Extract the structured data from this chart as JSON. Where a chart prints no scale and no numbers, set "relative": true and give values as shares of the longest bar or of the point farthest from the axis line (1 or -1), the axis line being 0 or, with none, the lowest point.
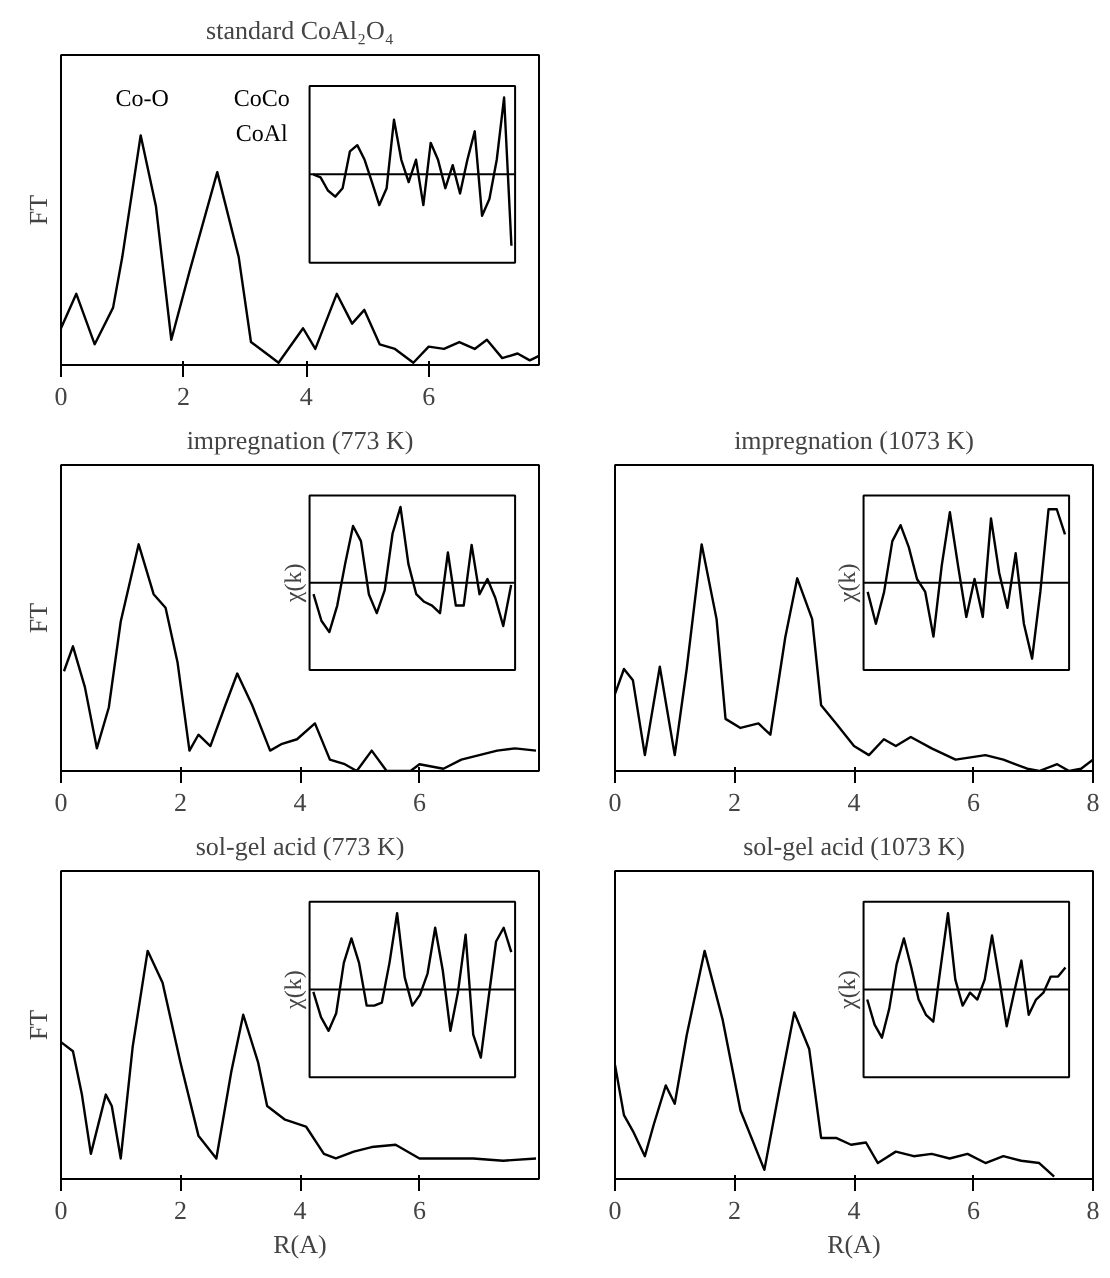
{
  "chart_data": [
    {
      "type": "line",
      "title": "standard CoAl₂O₄",
      "ylabel": "FT",
      "relative": true,
      "tick_labels": "x",
      "color": "#000000",
      "xlim": [
        0,
        7.8
      ],
      "xticks": [
        0,
        2,
        4,
        6
      ],
      "x": [
        0.0,
        0.25,
        0.55,
        0.85,
        1.0,
        1.3,
        1.55,
        1.8,
        2.1,
        2.55,
        2.9,
        3.1,
        3.4,
        3.55,
        3.95,
        4.15,
        4.5,
        4.75,
        4.95,
        5.2,
        5.45,
        5.75,
        6.0,
        6.25,
        6.5,
        6.75,
        6.95,
        7.2,
        7.45,
        7.65,
        7.8
      ],
      "values": [
        0.16,
        0.31,
        0.09,
        0.25,
        0.47,
        1.0,
        0.69,
        0.11,
        0.41,
        0.84,
        0.47,
        0.1,
        0.04,
        0.01,
        0.16,
        0.07,
        0.31,
        0.18,
        0.24,
        0.09,
        0.07,
        0.01,
        0.08,
        0.07,
        0.1,
        0.07,
        0.11,
        0.03,
        0.05,
        0.02,
        0.04
      ],
      "annotations": [
        "Co-O",
        "CoCo",
        "CoAl"
      ]
    },
    {
      "type": "line",
      "relative": true,
      "color": "#000000",
      "ref_lines": [
        {
          "axis": "y",
          "value": 0
        }
      ],
      "categories": [
        null,
        null,
        null,
        null,
        null,
        null,
        null,
        null,
        null,
        null,
        null,
        null,
        null,
        null,
        null,
        null,
        null,
        null,
        null,
        null,
        null,
        null,
        null,
        null,
        null,
        null,
        null,
        null
      ],
      "values": [
        0,
        -0.04,
        -0.21,
        -0.29,
        -0.18,
        0.3,
        0.38,
        0.19,
        -0.1,
        -0.4,
        -0.18,
        0.71,
        0.19,
        -0.1,
        0.19,
        -0.4,
        0.41,
        0.19,
        -0.18,
        0.12,
        -0.25,
        0.19,
        0.56,
        -0.54,
        -0.32,
        0.19,
        1.0,
        -0.93
      ]
    },
    {
      "type": "line",
      "title": "impregnation (773 K)",
      "ylabel": "FT",
      "relative": true,
      "tick_labels": "x",
      "color": "#000000",
      "xlim": [
        0,
        8
      ],
      "xticks": [
        0,
        2,
        4,
        6
      ],
      "x": [
        0.05,
        0.2,
        0.4,
        0.6,
        0.8,
        1.0,
        1.3,
        1.55,
        1.75,
        1.95,
        2.15,
        2.3,
        2.5,
        2.75,
        2.95,
        3.2,
        3.5,
        3.7,
        3.95,
        4.25,
        4.5,
        4.75,
        4.95,
        5.2,
        5.45,
        5.85,
        6.0,
        6.4,
        6.7,
        7.0,
        7.3,
        7.6,
        7.95
      ],
      "values": [
        0.44,
        0.55,
        0.37,
        0.1,
        0.28,
        0.66,
        1.0,
        0.78,
        0.72,
        0.48,
        0.09,
        0.16,
        0.11,
        0.29,
        0.43,
        0.29,
        0.09,
        0.12,
        0.14,
        0.21,
        0.05,
        0.03,
        0,
        0.09,
        0,
        0,
        0.03,
        0.01,
        0.05,
        0.07,
        0.09,
        0.1,
        0.09
      ]
    },
    {
      "type": "line",
      "ylabel": "χ(k)",
      "relative": true,
      "color": "#000000",
      "ref_lines": [
        {
          "axis": "y",
          "value": 0
        }
      ],
      "categories": [
        null,
        null,
        null,
        null,
        null,
        null,
        null,
        null,
        null,
        null,
        null,
        null,
        null,
        null,
        null,
        null,
        null,
        null,
        null,
        null,
        null,
        null,
        null,
        null,
        null,
        null
      ],
      "values": [
        -0.15,
        -0.5,
        -0.65,
        -0.3,
        0.25,
        0.75,
        0.55,
        -0.15,
        -0.4,
        -0.1,
        0.65,
        1.0,
        0.25,
        -0.15,
        -0.25,
        -0.3,
        -0.4,
        0.4,
        -0.3,
        -0.3,
        0.5,
        -0.15,
        0.05,
        -0.2,
        -0.57,
        -0.03
      ]
    },
    {
      "type": "line",
      "title": "impregnation (1073 K)",
      "relative": true,
      "tick_labels": "x",
      "color": "#000000",
      "xlim": [
        0,
        8
      ],
      "xticks": [
        0,
        2,
        4,
        6,
        8
      ],
      "x": [
        0.0,
        0.15,
        0.3,
        0.5,
        0.75,
        1.0,
        1.2,
        1.45,
        1.7,
        1.85,
        2.1,
        2.4,
        2.6,
        2.85,
        3.05,
        3.3,
        3.45,
        3.7,
        4.0,
        4.25,
        4.5,
        4.7,
        4.95,
        5.3,
        5.7,
        6.2,
        6.5,
        6.9,
        7.1,
        7.4,
        7.6,
        7.8,
        8.0
      ],
      "values": [
        0.34,
        0.45,
        0.4,
        0.07,
        0.46,
        0.07,
        0.45,
        1.0,
        0.67,
        0.23,
        0.19,
        0.21,
        0.16,
        0.59,
        0.85,
        0.67,
        0.29,
        0.21,
        0.11,
        0.07,
        0.14,
        0.11,
        0.15,
        0.1,
        0.05,
        0.07,
        0.05,
        0.01,
        0,
        0.03,
        0,
        0.01,
        0.05
      ]
    },
    {
      "type": "line",
      "ylabel": "χ(k)",
      "relative": true,
      "color": "#000000",
      "ref_lines": [
        {
          "axis": "y",
          "value": 0
        }
      ],
      "categories": [
        null,
        null,
        null,
        null,
        null,
        null,
        null,
        null,
        null,
        null,
        null,
        null,
        null,
        null,
        null,
        null,
        null,
        null,
        null,
        null,
        null,
        null,
        null,
        null,
        null
      ],
      "values": [
        -0.12,
        -0.54,
        -0.12,
        0.55,
        0.76,
        0.47,
        0.05,
        -0.12,
        -0.71,
        0.22,
        0.93,
        0.22,
        -0.45,
        0.05,
        -0.45,
        0.85,
        0.13,
        -0.33,
        0.39,
        -0.54,
        -1.0,
        -0.12,
        0.97,
        0.97,
        0.64
      ]
    },
    {
      "type": "line",
      "title": "sol-gel acid (773 K)",
      "ylabel": "FT",
      "xlabel": "R(A)",
      "relative": true,
      "tick_labels": "x",
      "color": "#000000",
      "xlim": [
        0,
        8
      ],
      "xticks": [
        0,
        2,
        4,
        6
      ],
      "x": [
        0.0,
        0.2,
        0.35,
        0.5,
        0.75,
        0.85,
        1.0,
        1.2,
        1.45,
        1.7,
        2.0,
        2.3,
        2.6,
        2.85,
        3.05,
        3.3,
        3.45,
        3.75,
        4.1,
        4.4,
        4.6,
        4.9,
        5.2,
        5.6,
        6.0,
        6.4,
        6.9,
        7.4,
        7.95
      ],
      "values": [
        0.6,
        0.56,
        0.37,
        0.11,
        0.37,
        0.32,
        0.09,
        0.58,
        1.0,
        0.86,
        0.51,
        0.19,
        0.09,
        0.47,
        0.72,
        0.51,
        0.32,
        0.26,
        0.23,
        0.11,
        0.09,
        0.12,
        0.14,
        0.15,
        0.09,
        0.09,
        0.09,
        0.08,
        0.09
      ]
    },
    {
      "type": "line",
      "ylabel": "χ(k)",
      "relative": true,
      "color": "#000000",
      "ref_lines": [
        {
          "axis": "y",
          "value": 0
        }
      ],
      "categories": [
        null,
        null,
        null,
        null,
        null,
        null,
        null,
        null,
        null,
        null,
        null,
        null,
        null,
        null,
        null,
        null,
        null,
        null,
        null,
        null,
        null,
        null,
        null,
        null,
        null,
        null,
        null
      ],
      "values": [
        -0.03,
        -0.36,
        -0.54,
        -0.31,
        0.35,
        0.67,
        0.35,
        -0.21,
        -0.21,
        -0.17,
        0.35,
        1.0,
        0.16,
        -0.21,
        -0.07,
        0.21,
        0.81,
        0.25,
        -0.54,
        -0.03,
        0.72,
        -0.59,
        -0.89,
        -0.12,
        0.63,
        0.81,
        0.49
      ]
    },
    {
      "type": "line",
      "title": "sol-gel acid (1073 K)",
      "xlabel": "R(A)",
      "relative": true,
      "tick_labels": "x",
      "color": "#000000",
      "xlim": [
        0,
        8
      ],
      "xticks": [
        0,
        2,
        4,
        6,
        8
      ],
      "x": [
        0.0,
        0.15,
        0.3,
        0.5,
        0.65,
        0.85,
        1.0,
        1.2,
        1.5,
        1.8,
        2.1,
        2.5,
        2.75,
        3.0,
        3.25,
        3.45,
        3.7,
        3.95,
        4.2,
        4.4,
        4.7,
        5.0,
        5.3,
        5.6,
        5.9,
        6.2,
        6.5,
        6.8,
        7.1,
        7.35
      ],
      "values": [
        0.5,
        0.28,
        0.21,
        0.1,
        0.24,
        0.41,
        0.33,
        0.63,
        1.0,
        0.7,
        0.3,
        0.04,
        0.39,
        0.73,
        0.57,
        0.18,
        0.18,
        0.15,
        0.16,
        0.07,
        0.12,
        0.1,
        0.11,
        0.09,
        0.11,
        0.07,
        0.1,
        0.08,
        0.07,
        0.01
      ]
    },
    {
      "type": "line",
      "ylabel": "χ(k)",
      "relative": true,
      "color": "#000000",
      "ref_lines": [
        {
          "axis": "y",
          "value": 0
        }
      ],
      "categories": [
        null,
        null,
        null,
        null,
        null,
        null,
        null,
        null,
        null,
        null,
        null,
        null,
        null,
        null,
        null,
        null,
        null,
        null,
        null,
        null,
        null,
        null,
        null,
        null,
        null,
        null,
        null,
        null
      ],
      "values": [
        -0.13,
        -0.46,
        -0.63,
        -0.25,
        0.33,
        0.67,
        0.29,
        -0.13,
        -0.33,
        -0.42,
        0.29,
        1.0,
        0.13,
        -0.21,
        -0.04,
        -0.13,
        0.13,
        0.71,
        0.13,
        -0.48,
        -0.04,
        0.38,
        -0.33,
        -0.13,
        -0.04,
        0.17,
        0.17,
        0.29
      ]
    }
  ]
}
